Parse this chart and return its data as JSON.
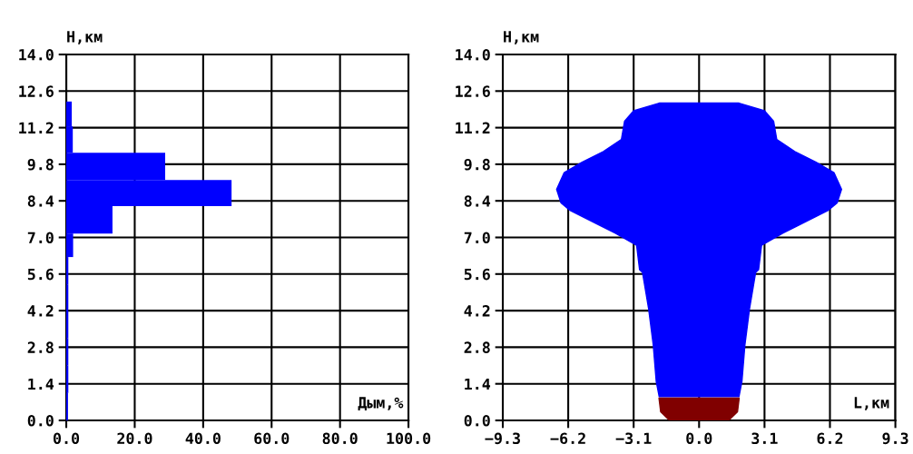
{
  "chart_data": [
    {
      "type": "histogram",
      "orientation": "horizontal",
      "xlabel": "Дым,%",
      "ylabel": "Н,км",
      "bins": [
        0.0,
        1.05,
        2.1,
        3.15,
        4.2,
        5.2,
        6.25,
        7.15,
        8.2,
        9.2,
        10.24,
        11.25,
        12.2
      ],
      "values": [
        0.5,
        0.6,
        0.6,
        0.6,
        0.6,
        0.6,
        2,
        13.5,
        48.3,
        28.9,
        1.9,
        1.6
      ],
      "color": "#0000ff",
      "xlim": [
        0,
        100
      ],
      "xticks": [
        {
          "value": 0,
          "label": "0.0"
        },
        {
          "value": 20,
          "label": "20.0"
        },
        {
          "value": 40,
          "label": "40.0"
        },
        {
          "value": 60,
          "label": "60.0"
        },
        {
          "value": 80,
          "label": "80.0"
        },
        {
          "value": 100,
          "label": "100.0"
        }
      ],
      "ylim": [
        0,
        14
      ],
      "yticks": [
        {
          "value": 0,
          "label": "0.0"
        },
        {
          "value": 1.4,
          "label": "1.4"
        },
        {
          "value": 2.8,
          "label": "2.8"
        },
        {
          "value": 4.2,
          "label": "4.2"
        },
        {
          "value": 5.6,
          "label": "5.6"
        },
        {
          "value": 7,
          "label": "7.0"
        },
        {
          "value": 8.4,
          "label": "8.4"
        },
        {
          "value": 9.8,
          "label": "9.8"
        },
        {
          "value": 11.2,
          "label": "11.2"
        },
        {
          "value": 12.6,
          "label": "12.6"
        },
        {
          "value": 14,
          "label": "14.0"
        }
      ],
      "grid": true
    },
    {
      "type": "area",
      "xlabel": "L,км",
      "ylabel": "Н,км",
      "series": [
        {
          "color": "#0000ff",
          "x": [
            1.89,
            3.1,
            3.53,
            3.68,
            4.53,
            5.54,
            6.39,
            6.75,
            6.54,
            6.1,
            4.82,
            3.96,
            2.96,
            2.82,
            2.68,
            2.39,
            2.17,
            2.03,
            1.89,
            -1.89,
            -2.03,
            -2.17,
            -2.39,
            -2.68,
            -2.82,
            -2.96,
            -3.96,
            -4.82,
            -6.1,
            -6.54,
            -6.75,
            -6.39,
            -5.54,
            -4.53,
            -3.68,
            -3.53,
            -3.1,
            -1.89
          ],
          "values": [
            12.14,
            11.85,
            11.45,
            10.75,
            10.29,
            9.88,
            9.48,
            8.84,
            8.32,
            8.03,
            7.51,
            7.16,
            6.7,
            5.77,
            5.66,
            4.27,
            2.88,
            1.49,
            0.91,
            0.91,
            1.49,
            2.88,
            4.27,
            5.66,
            5.77,
            6.7,
            7.16,
            7.51,
            8.03,
            8.32,
            8.84,
            9.48,
            9.88,
            10.29,
            10.75,
            11.45,
            11.85,
            12.14
          ]
        },
        {
          "color": "#800000",
          "x": [
            1.9,
            1.82,
            1.4,
            -1.4,
            -1.82,
            -1.9
          ],
          "values": [
            0.85,
            0.33,
            0,
            0,
            0.33,
            0.85
          ]
        }
      ],
      "xlim": [
        -9.3,
        9.3
      ],
      "xticks": [
        {
          "value": -9.3,
          "label": "−9.3"
        },
        {
          "value": -6.2,
          "label": "−6.2"
        },
        {
          "value": -3.1,
          "label": "−3.1"
        },
        {
          "value": 0,
          "label": "0.0"
        },
        {
          "value": 3.1,
          "label": "3.1"
        },
        {
          "value": 6.2,
          "label": "6.2"
        },
        {
          "value": 9.3,
          "label": "9.3"
        }
      ],
      "ylim": [
        0,
        14
      ],
      "yticks": [
        {
          "value": 0,
          "label": "0.0"
        },
        {
          "value": 1.4,
          "label": "1.4"
        },
        {
          "value": 2.8,
          "label": "2.8"
        },
        {
          "value": 4.2,
          "label": "4.2"
        },
        {
          "value": 5.6,
          "label": "5.6"
        },
        {
          "value": 7,
          "label": "7.0"
        },
        {
          "value": 8.4,
          "label": "8.4"
        },
        {
          "value": 9.8,
          "label": "9.8"
        },
        {
          "value": 11.2,
          "label": "11.2"
        },
        {
          "value": 12.6,
          "label": "12.6"
        },
        {
          "value": 14,
          "label": "14.0"
        }
      ],
      "grid": true
    }
  ]
}
